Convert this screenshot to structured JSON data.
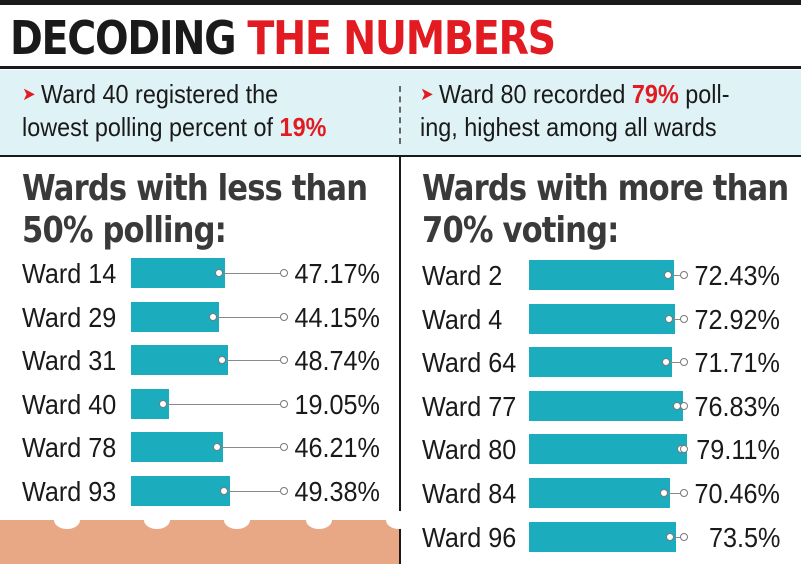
{
  "headline": {
    "part1": "DECODING",
    "part2": "THE NUMBERS"
  },
  "facts": {
    "left": {
      "line1": "Ward 40 registered the",
      "line2_prefix": "lowest polling percent of ",
      "line2_highlight": "19%"
    },
    "right": {
      "line1_prefix": "Ward 80 recorded ",
      "line1_highlight": "79%",
      "line1_suffix": " poll-",
      "line2": "ing, highest among all wards"
    }
  },
  "colors": {
    "bar": "#1badbd",
    "highlight": "#e21b23",
    "decoration": "#e8a886",
    "facts_background": "#dff3f6"
  },
  "chart_data": [
    {
      "type": "bar",
      "orientation": "horizontal",
      "title": "Wards with less than 50% polling:",
      "title_lines": [
        "Wards with less than",
        "50% polling:"
      ],
      "categories": [
        "Ward 14",
        "Ward 29",
        "Ward 31",
        "Ward 40",
        "Ward 78",
        "Ward 93"
      ],
      "values": [
        47.17,
        44.15,
        48.74,
        19.05,
        46.21,
        49.38
      ],
      "value_labels": [
        "47.17%",
        "44.15%",
        "48.74%",
        "19.05%",
        "46.21%",
        "49.38%"
      ],
      "unit": "%"
    },
    {
      "type": "bar",
      "orientation": "horizontal",
      "title": "Wards with more than 70% voting:",
      "title_lines": [
        "Wards with more than",
        "70% voting:"
      ],
      "categories": [
        "Ward 2",
        "Ward 4",
        "Ward 64",
        "Ward 77",
        "Ward 80",
        "Ward 84",
        "Ward 96"
      ],
      "values": [
        72.43,
        72.92,
        71.71,
        76.83,
        79.11,
        70.46,
        73.5
      ],
      "value_labels": [
        "72.43%",
        "72.92%",
        "71.71%",
        "76.83%",
        "79.11%",
        "70.46%",
        "73.5%"
      ],
      "unit": "%"
    }
  ]
}
